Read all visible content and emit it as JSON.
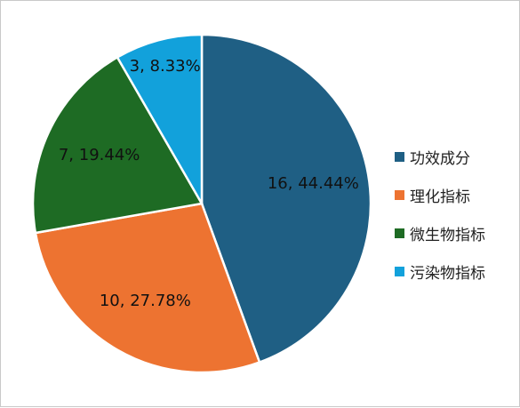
{
  "chart_data": {
    "type": "pie",
    "categories": [
      "功效成分",
      "理化指标",
      "微生物指标",
      "污染物指标"
    ],
    "values": [
      16,
      10,
      7,
      3
    ],
    "percent_labels": [
      "44.44%",
      "27.78%",
      "19.44%",
      "8.33%"
    ],
    "data_labels": [
      "16, 44.44%",
      "10, 27.78%",
      "7, 19.44%",
      "3, 8.33%"
    ],
    "colors": [
      "#1f5f84",
      "#ed7331",
      "#1e6b24",
      "#12a1db"
    ],
    "legend_position": "right",
    "start_angle": "12 o'clock, clockwise"
  }
}
